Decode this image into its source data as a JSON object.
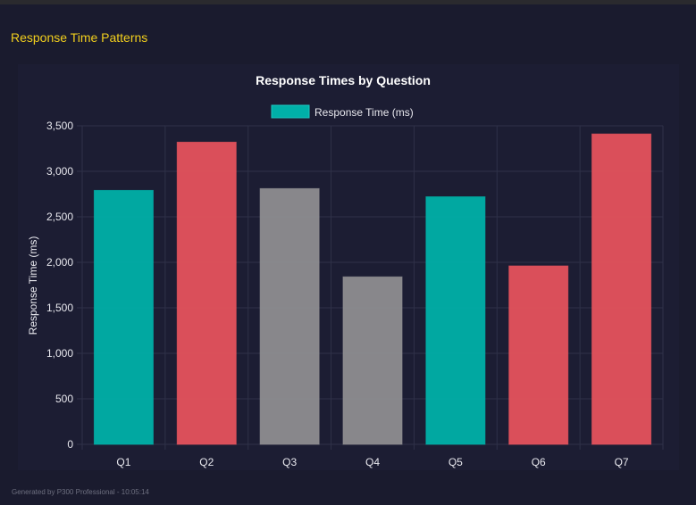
{
  "section_title": "Response Time Patterns",
  "footer": "Generated by P300 Professional - 10:05:14",
  "colors": {
    "teal": "#00b0a8",
    "red": "#e5525d",
    "gray": "#8e8d90",
    "accent": "#f2cf1d"
  },
  "chart_data": {
    "type": "bar",
    "title": "Response Times by Question",
    "legend": {
      "label": "Response Time (ms)",
      "position": "top"
    },
    "categories": [
      "Q1",
      "Q2",
      "Q3",
      "Q4",
      "Q5",
      "Q6",
      "Q7"
    ],
    "values": [
      2790,
      3320,
      2810,
      1840,
      2720,
      1960,
      3410
    ],
    "bar_colors": [
      "teal",
      "red",
      "gray",
      "gray",
      "teal",
      "red",
      "red"
    ],
    "xlabel": "",
    "ylabel": "Response Time (ms)",
    "ylim": [
      0,
      3500
    ],
    "yticks": [
      "0",
      "500",
      "1,000",
      "1,500",
      "2,000",
      "2,500",
      "3,000",
      "3,500"
    ],
    "grid": true
  }
}
